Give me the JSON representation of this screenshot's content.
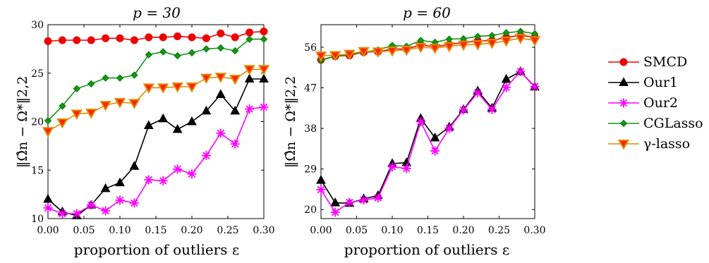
{
  "chart_data": [
    {
      "type": "line",
      "title": "p = 30",
      "xlabel": "proportion of outliers ε",
      "ylabel": "‖Ω̂n − Ω*‖2,2",
      "xlim": [
        0.0,
        0.3
      ],
      "ylim": [
        10,
        30
      ],
      "xticks": [
        0.0,
        0.05,
        0.1,
        0.15,
        0.2,
        0.25,
        0.3
      ],
      "xtick_labels": [
        "0.00",
        "0.05",
        "0.10",
        "0.15",
        "0.20",
        "0.25",
        "0.30"
      ],
      "yticks": [
        10,
        15,
        20,
        25,
        30
      ],
      "ytick_labels": [
        "10",
        "15",
        "20",
        "25",
        "30"
      ],
      "x": [
        0.0,
        0.02,
        0.04,
        0.06,
        0.08,
        0.1,
        0.12,
        0.14,
        0.16,
        0.18,
        0.2,
        0.22,
        0.24,
        0.26,
        0.28,
        0.3
      ],
      "series": [
        {
          "name": "SMCD",
          "values": [
            28.3,
            28.4,
            28.4,
            28.4,
            28.6,
            28.6,
            28.4,
            28.7,
            28.7,
            28.8,
            28.7,
            28.6,
            29.1,
            28.7,
            29.2,
            29.3
          ]
        },
        {
          "name": "Our1",
          "values": [
            12.0,
            10.7,
            10.3,
            11.4,
            13.1,
            13.7,
            15.4,
            19.6,
            20.3,
            19.2,
            20.0,
            21.1,
            22.8,
            21.1,
            24.4,
            24.4
          ]
        },
        {
          "name": "Our2",
          "values": [
            11.1,
            10.5,
            10.5,
            11.4,
            10.8,
            11.9,
            11.6,
            14.0,
            13.9,
            15.1,
            14.6,
            16.5,
            18.8,
            17.7,
            21.3,
            21.5
          ]
        },
        {
          "name": "CGLasso",
          "values": [
            20.1,
            21.6,
            23.4,
            23.9,
            24.5,
            24.5,
            24.8,
            26.9,
            27.2,
            26.8,
            27.1,
            27.5,
            27.6,
            27.3,
            28.5,
            28.5
          ]
        },
        {
          "name": "γ-lasso",
          "values": [
            19.0,
            19.9,
            20.8,
            20.9,
            21.7,
            22.0,
            21.9,
            23.5,
            23.5,
            23.6,
            23.6,
            24.5,
            24.6,
            24.4,
            25.4,
            25.4
          ]
        }
      ]
    },
    {
      "type": "line",
      "title": "p = 60",
      "xlabel": "proportion of outliers ε",
      "ylabel": "‖Ω̂n − Ω*‖2,2",
      "xlim": [
        0.0,
        0.3
      ],
      "ylim": [
        18,
        61
      ],
      "xticks": [
        0.0,
        0.05,
        0.1,
        0.15,
        0.2,
        0.25,
        0.3
      ],
      "xtick_labels": [
        "0.00",
        "0.05",
        "0.10",
        "0.15",
        "0.20",
        "0.25",
        "0.30"
      ],
      "yticks": [
        20,
        29,
        38,
        47,
        56
      ],
      "ytick_labels": [
        "20",
        "29",
        "38",
        "47",
        "56"
      ],
      "x": [
        0.0,
        0.02,
        0.04,
        0.06,
        0.08,
        0.1,
        0.12,
        0.14,
        0.16,
        0.18,
        0.2,
        0.22,
        0.24,
        0.26,
        0.28,
        0.3
      ],
      "series": [
        {
          "name": "SMCD",
          "values": [
            53.2,
            54.0,
            54.2,
            54.9,
            55.0,
            55.6,
            55.6,
            56.5,
            56.1,
            56.6,
            57.0,
            57.4,
            57.5,
            58.2,
            58.6,
            58.3
          ]
        },
        {
          "name": "Our1",
          "values": [
            26.5,
            21.5,
            21.4,
            22.4,
            23.1,
            30.2,
            30.4,
            40.2,
            35.9,
            38.3,
            42.2,
            46.3,
            42.5,
            48.9,
            50.6,
            47.2
          ]
        },
        {
          "name": "Our2",
          "values": [
            24.4,
            19.4,
            21.6,
            22.1,
            22.6,
            29.5,
            29.1,
            39.5,
            33.0,
            38.0,
            42.1,
            45.9,
            42.2,
            47.1,
            50.6,
            47.3
          ]
        },
        {
          "name": "CGLasso",
          "values": [
            53.1,
            54.0,
            54.4,
            54.9,
            55.4,
            56.4,
            56.2,
            57.5,
            57.1,
            57.8,
            57.9,
            58.4,
            58.6,
            59.2,
            59.5,
            59.0
          ]
        },
        {
          "name": "γ-lasso",
          "values": [
            54.1,
            54.2,
            54.5,
            55.1,
            55.0,
            55.2,
            55.4,
            56.0,
            55.8,
            56.2,
            56.5,
            56.6,
            56.9,
            57.4,
            58.0,
            57.5
          ]
        }
      ]
    }
  ],
  "legend": {
    "placement": "right",
    "items": [
      {
        "label": "SMCD",
        "color": "#ee0000",
        "edge": "#ee0000",
        "marker": "circle"
      },
      {
        "label": "Our1",
        "color": "#000000",
        "edge": "#000000",
        "marker": "triangle-up"
      },
      {
        "label": "Our2",
        "color": "#ff00ff",
        "edge": "#ff00ff",
        "marker": "asterisk"
      },
      {
        "label": "CGLasso",
        "color": "#159615",
        "edge": "#0b7a0b",
        "marker": "diamond"
      },
      {
        "label": "γ-lasso",
        "color": "#ff2200",
        "edge": "#e08a00",
        "marker": "triangle-down",
        "line": "#e08a00"
      }
    ]
  }
}
